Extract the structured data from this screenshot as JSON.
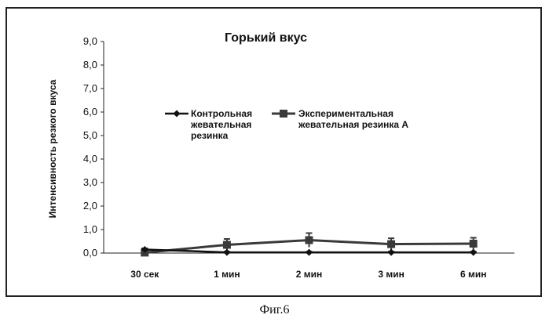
{
  "chart_data": {
    "type": "line",
    "title": "Горький вкус",
    "ylabel": "Интенсивность резкого вкуса",
    "xlabel": "",
    "categories": [
      "30 сек",
      "1 мин",
      "2 мин",
      "3 мин",
      "6 мин"
    ],
    "yticks": [
      "0,0",
      "1,0",
      "2,0",
      "3,0",
      "4,0",
      "5,0",
      "6,0",
      "7,0",
      "8,0",
      "9,0"
    ],
    "ylim": [
      0,
      9
    ],
    "grid": false,
    "legend_position": "top-center",
    "series": [
      {
        "name": "Контрольная жевательная резинка",
        "name_lines": [
          "Контрольная",
          "жевательная",
          "резинка"
        ],
        "marker": "diamond",
        "color": "#111111",
        "values": [
          0.15,
          0.03,
          0.03,
          0.03,
          0.03
        ],
        "errors": [
          0.05,
          0.03,
          0.03,
          0.03,
          0.03
        ]
      },
      {
        "name": "Экспериментальная жевательная резинка А",
        "name_lines": [
          "Экспериментальная",
          "жевательная резинка А"
        ],
        "marker": "square",
        "color": "#3a3a3a",
        "values": [
          0.02,
          0.35,
          0.55,
          0.38,
          0.4
        ],
        "errors": [
          0.05,
          0.25,
          0.3,
          0.25,
          0.25
        ]
      }
    ]
  },
  "caption": "Фиг.6"
}
